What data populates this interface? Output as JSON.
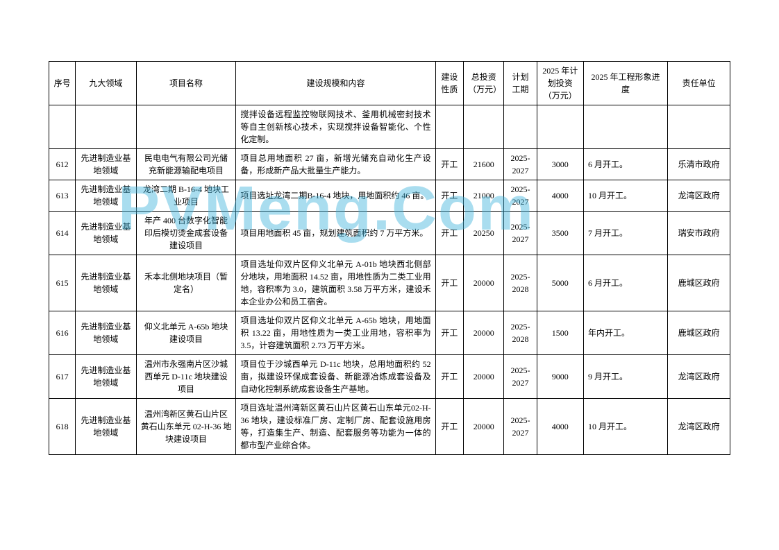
{
  "watermark_text": "PVMeng.Com",
  "watermark_color": "#5ab9d6",
  "table": {
    "columns": [
      {
        "key": "seq",
        "label": "序号"
      },
      {
        "key": "field",
        "label": "九大领域"
      },
      {
        "key": "name",
        "label": "项目名称"
      },
      {
        "key": "content",
        "label": "建设规模和内容"
      },
      {
        "key": "nature",
        "label": "建设性质"
      },
      {
        "key": "invest",
        "label": "总投资（万元）"
      },
      {
        "key": "period",
        "label": "计划工期"
      },
      {
        "key": "plan",
        "label": "2025 年计划投资（万元）"
      },
      {
        "key": "progress",
        "label": "2025 年工程形象进度"
      },
      {
        "key": "unit",
        "label": "责任单位"
      }
    ],
    "rows": [
      {
        "seq": "",
        "field": "",
        "name": "",
        "content": "搅拌设备远程监控物联网技术、釜用机械密封技术等自主创新核心技术，实现搅拌设备智能化、个性化定制。",
        "nature": "",
        "invest": "",
        "period": "",
        "plan": "",
        "progress": "",
        "unit": ""
      },
      {
        "seq": "612",
        "field": "先进制造业基地领域",
        "name": "民电电气有限公司光储充新能源输配电项目",
        "content": "项目总用地面积 27 亩，新增光储充自动化生产设备，形成新产品大批量生产能力。",
        "nature": "开工",
        "invest": "21600",
        "period": "2025-2027",
        "plan": "3000",
        "progress": "6 月开工。",
        "unit": "乐清市政府"
      },
      {
        "seq": "613",
        "field": "先进制造业基地领域",
        "name": "龙湾二期 B-16-4 地块工业项目",
        "content": "项目选址龙湾二期B-16-4 地块，用地面积约 46 亩。",
        "nature": "开工",
        "invest": "21000",
        "period": "2025-2027",
        "plan": "4000",
        "progress": "10 月开工。",
        "unit": "龙湾区政府"
      },
      {
        "seq": "614",
        "field": "先进制造业基地领域",
        "name": "年产 400 台数字化智能印后模切烫金成套设备建设项目",
        "content": "项目用地面积 45 亩，规划建筑面积约 7 万平方米。",
        "nature": "开工",
        "invest": "20250",
        "period": "2025-2027",
        "plan": "3500",
        "progress": "7 月开工。",
        "unit": "瑞安市政府"
      },
      {
        "seq": "615",
        "field": "先进制造业基地领域",
        "name": "禾本北侧地块项目（暂定名）",
        "content": "项目选址仰双片区仰义北单元 A-01b 地块西北侧部分地块，用地面积 14.52 亩，用地性质为二类工业用地，容积率为 3.0，建筑面积 3.58 万平方米，建设禾本企业办公和员工宿舍。",
        "nature": "开工",
        "invest": "20000",
        "period": "2025-2028",
        "plan": "5000",
        "progress": "6 月开工。",
        "unit": "鹿城区政府"
      },
      {
        "seq": "616",
        "field": "先进制造业基地领域",
        "name": "仰义北单元 A-65b 地块建设项目",
        "content": "项目选址仰双片区仰义北单元 A-65b 地块，用地面积 13.22 亩，用地性质为一类工业用地，容积率为 3.5，计容建筑面积 2.73 万平方米。",
        "nature": "开工",
        "invest": "20000",
        "period": "2025-2028",
        "plan": "1500",
        "progress": "年内开工。",
        "unit": "鹿城区政府"
      },
      {
        "seq": "617",
        "field": "先进制造业基地领域",
        "name": "温州市永强南片区沙城西单元 D-11c 地块建设项目",
        "content": "项目位于沙城西单元 D-11c 地块，总用地面积约 52 亩，拟建设环保成套设备、新能源冶炼成套设备及自动化控制系统成套设备生产基地。",
        "nature": "开工",
        "invest": "20000",
        "period": "2025-2027",
        "plan": "9000",
        "progress": "9 月开工。",
        "unit": "龙湾区政府"
      },
      {
        "seq": "618",
        "field": "先进制造业基地领域",
        "name": "温州湾新区黄石山片区黄石山东单元 02-H-36 地块建设项目",
        "content": "项目选址温州湾新区黄石山片区黄石山东单元02-H-36 地块，建设标准厂房、定制厂房、配套设施用房等，打造集生产、制造、配套服务等功能为一体的都市型产业综合体。",
        "nature": "开工",
        "invest": "20000",
        "period": "2025-2027",
        "plan": "4000",
        "progress": "10 月开工。",
        "unit": "龙湾区政府"
      }
    ]
  }
}
